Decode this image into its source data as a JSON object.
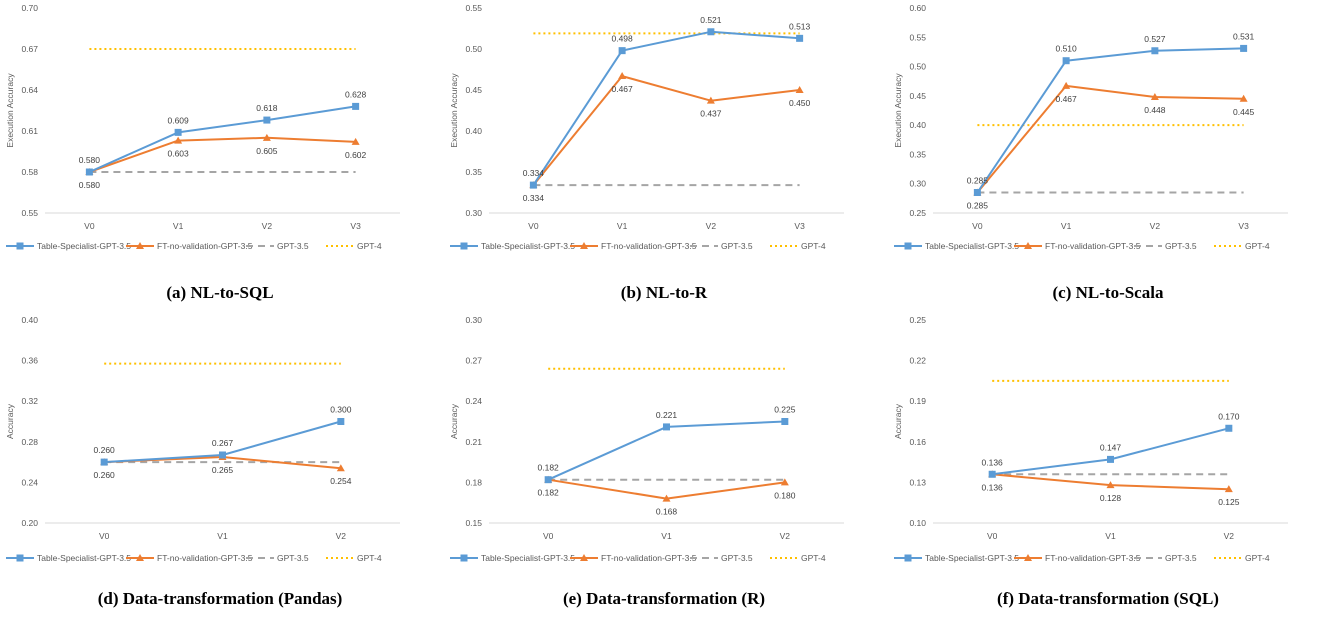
{
  "colors": {
    "table_specialist": "#5B9BD5",
    "ft_no_validation": "#ED7D31",
    "gpt35": "#A5A5A5",
    "gpt4": "#FFC000",
    "axis": "#D9D9D9"
  },
  "legend": {
    "table_specialist": "Table-Specialist-GPT-3.5",
    "ft_no_validation": "FT-no-validation-GPT-3.5",
    "gpt35": "GPT-3.5",
    "gpt4": "GPT-4"
  },
  "chart_data": [
    {
      "type": "line",
      "caption": "(a) NL-to-SQL",
      "ylabel": "Execution Accuracy",
      "categories": [
        "V0",
        "V1",
        "V2",
        "V3"
      ],
      "ylim": [
        0.55,
        0.7
      ],
      "yticks": [
        "0.55",
        "0.58",
        "0.61",
        "0.64",
        "0.67",
        "0.70"
      ],
      "series": [
        {
          "name": "Table-Specialist-GPT-3.5",
          "values": [
            0.58,
            0.609,
            0.618,
            0.628
          ],
          "labels": [
            "0.580",
            "0.609",
            "0.618",
            "0.628"
          ]
        },
        {
          "name": "FT-no-validation-GPT-3.5",
          "values": [
            0.58,
            0.603,
            0.605,
            0.602
          ],
          "labels": [
            "0.580",
            "0.603",
            "0.605",
            "0.602"
          ]
        },
        {
          "name": "GPT-3.5",
          "values": [
            0.58,
            0.58,
            0.58,
            0.58
          ]
        },
        {
          "name": "GPT-4",
          "values": [
            0.67,
            0.67,
            0.67,
            0.67
          ]
        }
      ]
    },
    {
      "type": "line",
      "caption": "(b) NL-to-R",
      "ylabel": "Execution Accuracy",
      "categories": [
        "V0",
        "V1",
        "V2",
        "V3"
      ],
      "ylim": [
        0.3,
        0.55
      ],
      "yticks": [
        "0.30",
        "0.35",
        "0.40",
        "0.45",
        "0.50",
        "0.55"
      ],
      "series": [
        {
          "name": "Table-Specialist-GPT-3.5",
          "values": [
            0.334,
            0.498,
            0.521,
            0.513
          ],
          "labels": [
            "0.334",
            "0.498",
            "0.521",
            "0.513"
          ]
        },
        {
          "name": "FT-no-validation-GPT-3.5",
          "values": [
            0.334,
            0.467,
            0.437,
            0.45
          ],
          "labels": [
            "0.334",
            "0.467",
            "0.437",
            "0.450"
          ]
        },
        {
          "name": "GPT-3.5",
          "values": [
            0.334,
            0.334,
            0.334,
            0.334
          ]
        },
        {
          "name": "GPT-4",
          "values": [
            0.519,
            0.519,
            0.519,
            0.519
          ]
        }
      ]
    },
    {
      "type": "line",
      "caption": "(c) NL-to-Scala",
      "ylabel": "Execution Accuracy",
      "categories": [
        "V0",
        "V1",
        "V2",
        "V3"
      ],
      "ylim": [
        0.25,
        0.6
      ],
      "yticks": [
        "0.25",
        "0.30",
        "0.35",
        "0.40",
        "0.45",
        "0.50",
        "0.55",
        "0.60"
      ],
      "series": [
        {
          "name": "Table-Specialist-GPT-3.5",
          "values": [
            0.285,
            0.51,
            0.527,
            0.531
          ],
          "labels": [
            "0.285",
            "0.510",
            "0.527",
            "0.531"
          ]
        },
        {
          "name": "FT-no-validation-GPT-3.5",
          "values": [
            0.285,
            0.467,
            0.448,
            0.445
          ],
          "labels": [
            "0.285",
            "0.467",
            "0.448",
            "0.445"
          ]
        },
        {
          "name": "GPT-3.5",
          "values": [
            0.285,
            0.285,
            0.285,
            0.285
          ]
        },
        {
          "name": "GPT-4",
          "values": [
            0.4,
            0.4,
            0.4,
            0.4
          ]
        }
      ]
    },
    {
      "type": "line",
      "caption": "(d) Data-transformation (Pandas)",
      "ylabel": "Accuracy",
      "categories": [
        "V0",
        "V1",
        "V2"
      ],
      "ylim": [
        0.2,
        0.4
      ],
      "yticks": [
        "0.20",
        "0.24",
        "0.28",
        "0.32",
        "0.36",
        "0.40"
      ],
      "series": [
        {
          "name": "Table-Specialist-GPT-3.5",
          "values": [
            0.26,
            0.267,
            0.3
          ],
          "labels": [
            "0.260",
            "0.267",
            "0.300"
          ]
        },
        {
          "name": "FT-no-validation-GPT-3.5",
          "values": [
            0.26,
            0.265,
            0.254
          ],
          "labels": [
            "0.260",
            "0.265",
            "0.254"
          ]
        },
        {
          "name": "GPT-3.5",
          "values": [
            0.26,
            0.26,
            0.26
          ]
        },
        {
          "name": "GPT-4",
          "values": [
            0.357,
            0.357,
            0.357
          ]
        }
      ]
    },
    {
      "type": "line",
      "caption": "(e) Data-transformation (R)",
      "ylabel": "Accuracy",
      "categories": [
        "V0",
        "V1",
        "V2"
      ],
      "ylim": [
        0.15,
        0.3
      ],
      "yticks": [
        "0.15",
        "0.18",
        "0.21",
        "0.24",
        "0.27",
        "0.30"
      ],
      "series": [
        {
          "name": "Table-Specialist-GPT-3.5",
          "values": [
            0.182,
            0.221,
            0.225
          ],
          "labels": [
            "0.182",
            "0.221",
            "0.225"
          ]
        },
        {
          "name": "FT-no-validation-GPT-3.5",
          "values": [
            0.182,
            0.168,
            0.18
          ],
          "labels": [
            "0.182",
            "0.168",
            "0.180"
          ]
        },
        {
          "name": "GPT-3.5",
          "values": [
            0.182,
            0.182,
            0.182
          ]
        },
        {
          "name": "GPT-4",
          "values": [
            0.264,
            0.264,
            0.264
          ]
        }
      ]
    },
    {
      "type": "line",
      "caption": "(f) Data-transformation (SQL)",
      "ylabel": "Accuracy",
      "categories": [
        "V0",
        "V1",
        "V2"
      ],
      "ylim": [
        0.1,
        0.25
      ],
      "yticks": [
        "0.10",
        "0.13",
        "0.16",
        "0.19",
        "0.22",
        "0.25"
      ],
      "series": [
        {
          "name": "Table-Specialist-GPT-3.5",
          "values": [
            0.136,
            0.147,
            0.17
          ],
          "labels": [
            "0.136",
            "0.147",
            "0.170"
          ]
        },
        {
          "name": "FT-no-validation-GPT-3.5",
          "values": [
            0.136,
            0.128,
            0.125
          ],
          "labels": [
            "0.136",
            "0.128",
            "0.125"
          ]
        },
        {
          "name": "GPT-3.5",
          "values": [
            0.136,
            0.136,
            0.136
          ]
        },
        {
          "name": "GPT-4",
          "values": [
            0.205,
            0.205,
            0.205
          ]
        }
      ]
    }
  ]
}
